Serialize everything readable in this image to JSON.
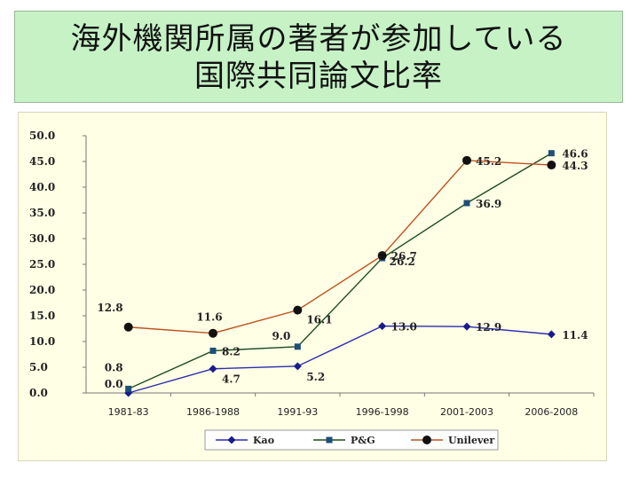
{
  "title": {
    "line1": "海外機関所属の著者が参加している",
    "line2": "国際共同論文比率"
  },
  "colors": {
    "title_bg": "#c6f2c6",
    "plot_bg": "#ffffe6",
    "Kao": "#1a1a8c",
    "P&G": "#1f4e79",
    "Unilever": "#c0501e"
  },
  "chart_data": {
    "type": "line",
    "categories": [
      "1981-83",
      "1986-1988",
      "1991-93",
      "1996-1998",
      "2001-2003",
      "2006-2008"
    ],
    "ylim": [
      0,
      50
    ],
    "yticks": [
      "0.0",
      "5.0",
      "10.0",
      "15.0",
      "20.0",
      "25.0",
      "30.0",
      "35.0",
      "40.0",
      "45.0",
      "50.0"
    ],
    "grid": false,
    "legend_position": "bottom",
    "series": [
      {
        "name": "Kao",
        "marker": "diamond",
        "line_color": "#2b2bb0",
        "marker_color": "#1a1a8c",
        "values": [
          0.0,
          4.7,
          5.2,
          13.0,
          12.9,
          11.4
        ],
        "labels": [
          "0.0",
          "4.7",
          "5.2",
          "13.0",
          "12.9",
          "11.4"
        ]
      },
      {
        "name": "P&G",
        "marker": "square",
        "line_color": "#1e4d1e",
        "marker_color": "#1f4e79",
        "values": [
          0.8,
          8.2,
          9.0,
          26.2,
          36.9,
          46.6
        ],
        "labels": [
          "0.8",
          "8.2",
          "9.0",
          "26.2",
          "36.9",
          "46.6"
        ]
      },
      {
        "name": "Unilever",
        "marker": "circle",
        "line_color": "#c0501e",
        "marker_color": "#111111",
        "values": [
          12.8,
          11.6,
          16.1,
          26.7,
          45.2,
          44.3
        ],
        "labels": [
          "12.8",
          "11.6",
          "16.1",
          "26.7",
          "45.2",
          "44.3"
        ]
      }
    ]
  }
}
